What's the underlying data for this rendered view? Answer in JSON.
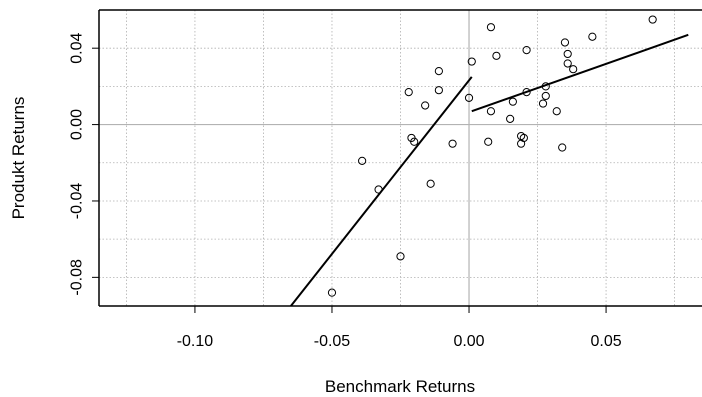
{
  "chart_data": {
    "type": "scatter",
    "title": "",
    "xlabel": "Benchmark Returns",
    "ylabel": "Produkt Returns",
    "xlim": [
      -0.135,
      0.085
    ],
    "ylim": [
      -0.095,
      0.06
    ],
    "x_ticks": [
      {
        "value": -0.1,
        "label": "-0.10"
      },
      {
        "value": -0.05,
        "label": "-0.05"
      },
      {
        "value": 0.0,
        "label": "0.00"
      },
      {
        "value": 0.05,
        "label": "0.05"
      }
    ],
    "y_ticks": [
      {
        "value": 0.04,
        "label": "0.04"
      },
      {
        "value": 0.0,
        "label": "0.00"
      },
      {
        "value": -0.04,
        "label": "-0.04"
      },
      {
        "value": -0.08,
        "label": "-0.08"
      }
    ],
    "x_grid": [
      -0.125,
      -0.1,
      -0.075,
      -0.05,
      -0.025,
      0.025,
      0.05,
      0.075
    ],
    "y_grid": [
      0.04,
      0.02,
      -0.02,
      -0.04,
      -0.06,
      -0.08
    ],
    "grid": true,
    "points": [
      {
        "x": 0.067,
        "y": 0.055
      },
      {
        "x": 0.045,
        "y": 0.046
      },
      {
        "x": 0.035,
        "y": 0.043
      },
      {
        "x": 0.036,
        "y": 0.037
      },
      {
        "x": 0.036,
        "y": 0.032
      },
      {
        "x": 0.038,
        "y": 0.029
      },
      {
        "x": 0.008,
        "y": 0.051
      },
      {
        "x": 0.021,
        "y": 0.039
      },
      {
        "x": 0.01,
        "y": 0.036
      },
      {
        "x": 0.001,
        "y": 0.033
      },
      {
        "x": -0.011,
        "y": 0.028
      },
      {
        "x": -0.022,
        "y": 0.017
      },
      {
        "x": -0.011,
        "y": 0.018
      },
      {
        "x": -0.016,
        "y": 0.01
      },
      {
        "x": 0.0,
        "y": 0.014
      },
      {
        "x": 0.028,
        "y": 0.02
      },
      {
        "x": 0.021,
        "y": 0.017
      },
      {
        "x": 0.028,
        "y": 0.015
      },
      {
        "x": 0.016,
        "y": 0.012
      },
      {
        "x": 0.027,
        "y": 0.011
      },
      {
        "x": 0.008,
        "y": 0.007
      },
      {
        "x": 0.032,
        "y": 0.007
      },
      {
        "x": 0.015,
        "y": 0.003
      },
      {
        "x": 0.019,
        "y": -0.006
      },
      {
        "x": 0.02,
        "y": -0.007
      },
      {
        "x": 0.007,
        "y": -0.009
      },
      {
        "x": 0.019,
        "y": -0.01
      },
      {
        "x": 0.034,
        "y": -0.012
      },
      {
        "x": -0.021,
        "y": -0.007
      },
      {
        "x": -0.02,
        "y": -0.009
      },
      {
        "x": -0.006,
        "y": -0.01
      },
      {
        "x": -0.039,
        "y": -0.019
      },
      {
        "x": -0.033,
        "y": -0.034
      },
      {
        "x": -0.014,
        "y": -0.031
      },
      {
        "x": -0.025,
        "y": -0.069
      },
      {
        "x": -0.05,
        "y": -0.088
      }
    ],
    "fit_lines": [
      {
        "x": [
          -0.065,
          0.001
        ],
        "y": [
          -0.095,
          0.025
        ]
      },
      {
        "x": [
          0.001,
          0.08
        ],
        "y": [
          0.007,
          0.047
        ]
      }
    ]
  }
}
